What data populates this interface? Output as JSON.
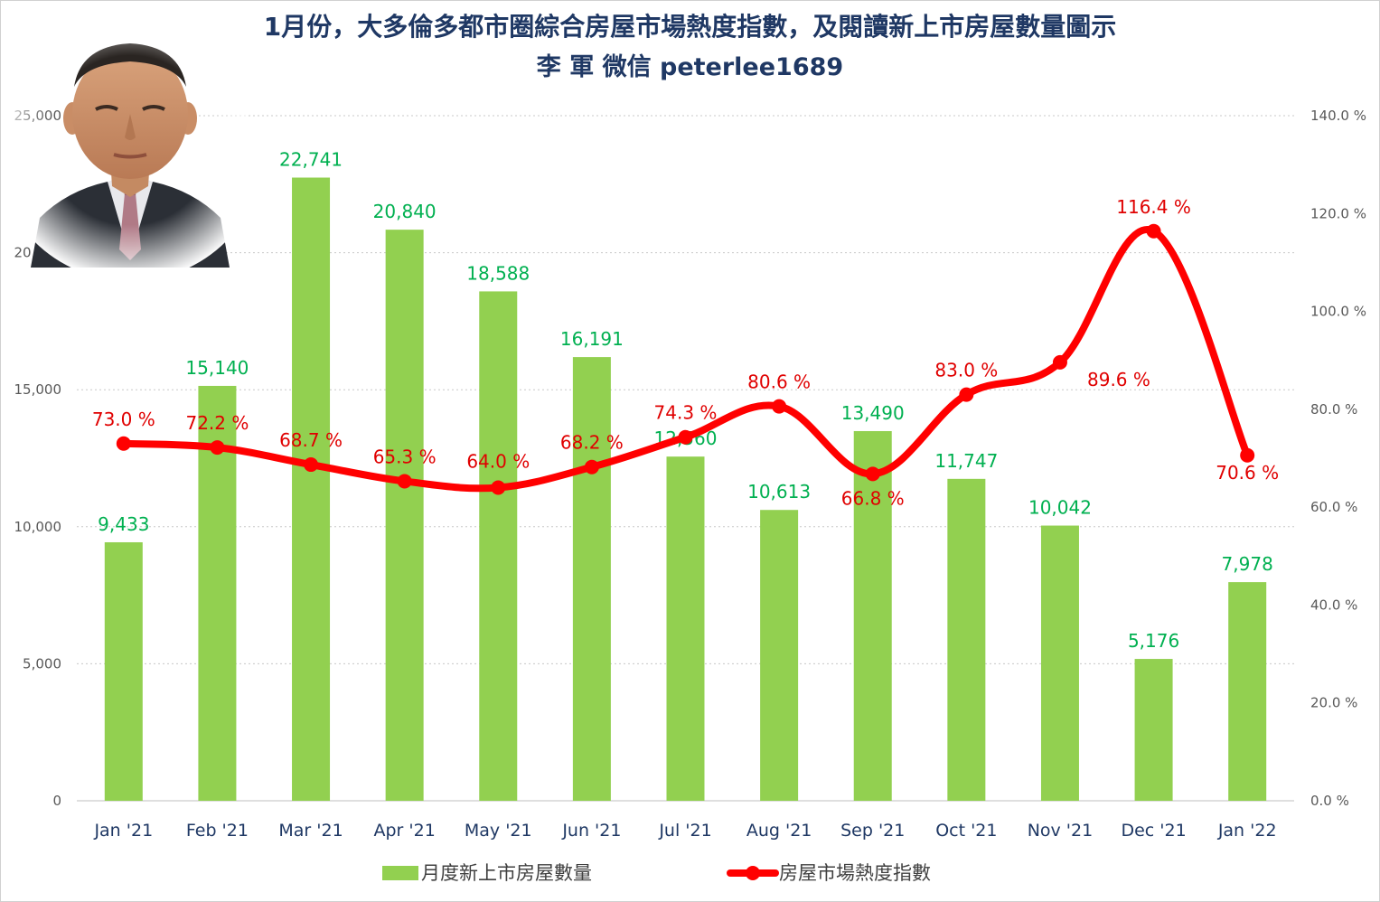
{
  "title_line1": "1月份，大多倫多都市圈綜合房屋市場熱度指數，及閱讀新上市房屋數量圖示",
  "title_line2": "李 軍  微信 peterlee1689",
  "colors": {
    "bar": "#92d050",
    "bar_label": "#00b050",
    "line": "#ff0000",
    "line_label": "#e00000",
    "title": "#1f3864",
    "axis_text": "#595959",
    "category_text": "#1f3864",
    "grid": "#c8c8c8"
  },
  "chart_data": {
    "type": "bar+line",
    "categories": [
      "Jan '21",
      "Feb '21",
      "Mar '21",
      "Apr '21",
      "May '21",
      "Jun '21",
      "Jul '21",
      "Aug '21",
      "Sep '21",
      "Oct '21",
      "Nov '21",
      "Dec '21",
      "Jan '22"
    ],
    "series": [
      {
        "name": "月度新上市房屋數量",
        "type": "bar",
        "axis": "left",
        "values": [
          9433,
          15140,
          22741,
          20840,
          18588,
          16191,
          12560,
          10613,
          13490,
          11747,
          10042,
          5176,
          7978
        ],
        "labels": [
          "9,433",
          "15,140",
          "22,741",
          "20,840",
          "18,588",
          "16,191",
          "12,560",
          "10,613",
          "13,490",
          "11,747",
          "10,042",
          "5,176",
          "7,978"
        ]
      },
      {
        "name": "房屋市場熱度指數",
        "type": "line",
        "axis": "right",
        "values": [
          73.0,
          72.2,
          68.7,
          65.3,
          64.0,
          68.2,
          74.3,
          80.6,
          66.8,
          83.0,
          89.6,
          116.4,
          70.6
        ],
        "labels": [
          "73.0 %",
          "72.2 %",
          "68.7 %",
          "65.3 %",
          "64.0 %",
          "68.2 %",
          "74.3 %",
          "80.6 %",
          "66.8 %",
          "83.0 %",
          "89.6 %",
          "116.4 %",
          "70.6 %"
        ]
      }
    ],
    "left_axis": {
      "min": 0,
      "max": 25000,
      "ticks": [
        0,
        5000,
        10000,
        15000,
        20000,
        25000
      ],
      "tick_labels": [
        "0",
        "5,000",
        "10,000",
        "15,000",
        "20,000",
        "25,000"
      ]
    },
    "right_axis": {
      "min": 0,
      "max": 140,
      "ticks": [
        0,
        20,
        40,
        60,
        80,
        100,
        120,
        140
      ],
      "tick_labels": [
        "0.0 %",
        "20.0 %",
        "40.0 %",
        "60.0 %",
        "80.0 %",
        "100.0 %",
        "120.0 %",
        "140.0 %"
      ]
    },
    "grid": true,
    "legend_position": "bottom",
    "legend": [
      "月度新上市房屋數量",
      "房屋市場熱度指數"
    ]
  }
}
